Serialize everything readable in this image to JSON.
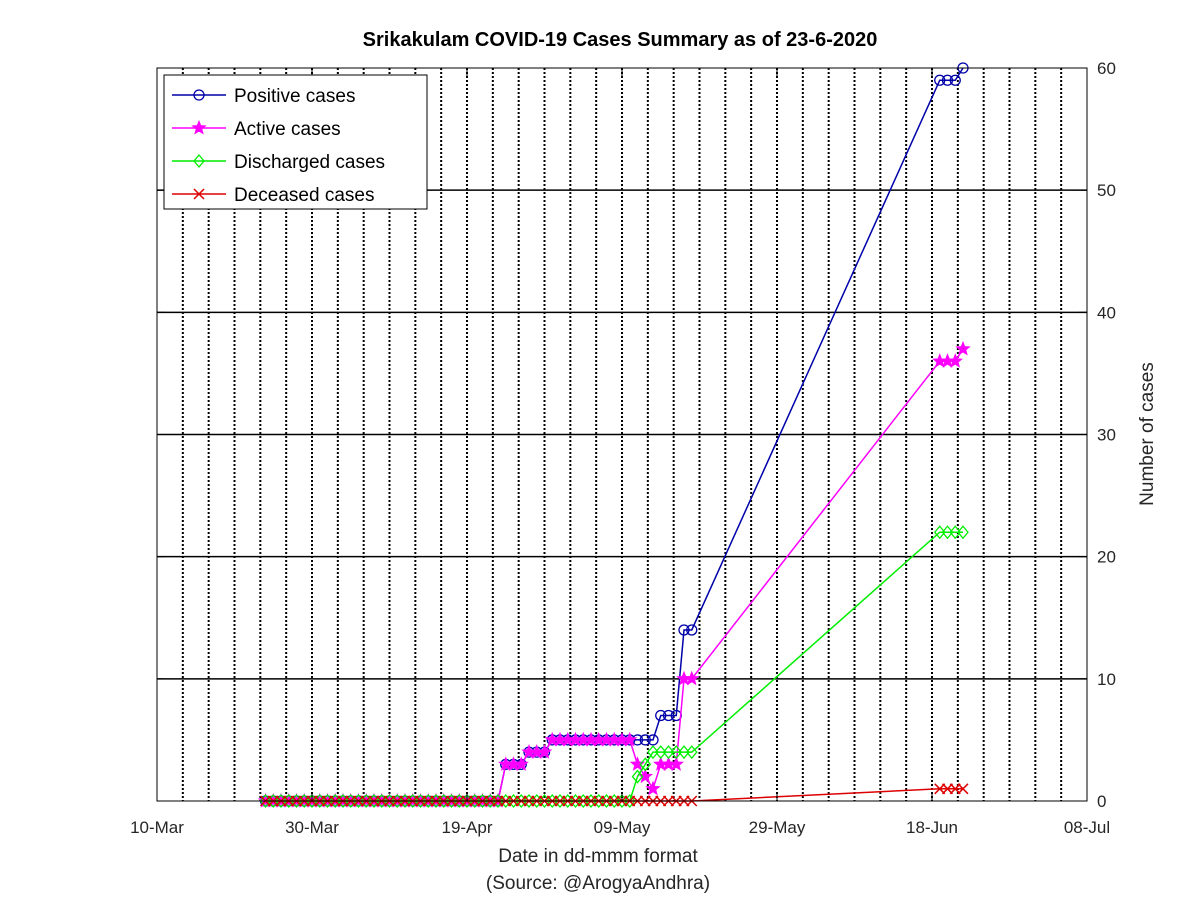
{
  "chart_data": {
    "type": "line",
    "title": "Srikakulam COVID-19 Cases Summary as of 23-6-2020",
    "xlabel": "Date in dd-mmm format",
    "xlabel_source": "(Source: @ArogyaAndhra)",
    "ylabel": "Number of cases",
    "x_range": [
      "2020-03-10",
      "2020-07-08"
    ],
    "ylim": [
      0,
      60
    ],
    "x_ticks": [
      {
        "date": "2020-03-10",
        "label": "10-Mar"
      },
      {
        "date": "2020-03-30",
        "label": "30-Mar"
      },
      {
        "date": "2020-04-19",
        "label": "19-Apr"
      },
      {
        "date": "2020-05-09",
        "label": "09-May"
      },
      {
        "date": "2020-05-29",
        "label": "29-May"
      },
      {
        "date": "2020-06-18",
        "label": "18-Jun"
      },
      {
        "date": "2020-07-08",
        "label": "08-Jul"
      }
    ],
    "y_ticks": [
      0,
      10,
      20,
      30,
      40,
      50,
      60
    ],
    "y_axis_side": "right",
    "grid": "vertical dotted daily-ish lines, horizontal solid lines",
    "legend_position": "top-left",
    "series": [
      {
        "name": "Positive cases",
        "color": "#0000aa",
        "marker": "circle",
        "points": [
          [
            "2020-03-24",
            0
          ],
          [
            "2020-03-25",
            0
          ],
          [
            "2020-03-26",
            0
          ],
          [
            "2020-03-27",
            0
          ],
          [
            "2020-03-28",
            0
          ],
          [
            "2020-03-29",
            0
          ],
          [
            "2020-03-30",
            0
          ],
          [
            "2020-03-31",
            0
          ],
          [
            "2020-04-01",
            0
          ],
          [
            "2020-04-02",
            0
          ],
          [
            "2020-04-03",
            0
          ],
          [
            "2020-04-04",
            0
          ],
          [
            "2020-04-05",
            0
          ],
          [
            "2020-04-06",
            0
          ],
          [
            "2020-04-07",
            0
          ],
          [
            "2020-04-08",
            0
          ],
          [
            "2020-04-09",
            0
          ],
          [
            "2020-04-10",
            0
          ],
          [
            "2020-04-11",
            0
          ],
          [
            "2020-04-12",
            0
          ],
          [
            "2020-04-13",
            0
          ],
          [
            "2020-04-14",
            0
          ],
          [
            "2020-04-15",
            0
          ],
          [
            "2020-04-16",
            0
          ],
          [
            "2020-04-17",
            0
          ],
          [
            "2020-04-18",
            0
          ],
          [
            "2020-04-19",
            0
          ],
          [
            "2020-04-20",
            0
          ],
          [
            "2020-04-21",
            0
          ],
          [
            "2020-04-22",
            0
          ],
          [
            "2020-04-23",
            0
          ],
          [
            "2020-04-24",
            3
          ],
          [
            "2020-04-25",
            3
          ],
          [
            "2020-04-26",
            3
          ],
          [
            "2020-04-27",
            4
          ],
          [
            "2020-04-28",
            4
          ],
          [
            "2020-04-29",
            4
          ],
          [
            "2020-04-30",
            5
          ],
          [
            "2020-05-01",
            5
          ],
          [
            "2020-05-02",
            5
          ],
          [
            "2020-05-03",
            5
          ],
          [
            "2020-05-04",
            5
          ],
          [
            "2020-05-05",
            5
          ],
          [
            "2020-05-06",
            5
          ],
          [
            "2020-05-07",
            5
          ],
          [
            "2020-05-08",
            5
          ],
          [
            "2020-05-09",
            5
          ],
          [
            "2020-05-10",
            5
          ],
          [
            "2020-05-11",
            5
          ],
          [
            "2020-05-12",
            5
          ],
          [
            "2020-05-13",
            5
          ],
          [
            "2020-05-14",
            7
          ],
          [
            "2020-05-15",
            7
          ],
          [
            "2020-05-16",
            7
          ],
          [
            "2020-05-17",
            14
          ],
          [
            "2020-05-18",
            14
          ],
          [
            "2020-06-19",
            59
          ],
          [
            "2020-06-20",
            59
          ],
          [
            "2020-06-21",
            59
          ],
          [
            "2020-06-22",
            60
          ]
        ]
      },
      {
        "name": "Active cases",
        "color": "#ff00ff",
        "marker": "star",
        "points": [
          [
            "2020-03-24",
            0
          ],
          [
            "2020-03-25",
            0
          ],
          [
            "2020-03-26",
            0
          ],
          [
            "2020-03-27",
            0
          ],
          [
            "2020-03-28",
            0
          ],
          [
            "2020-03-29",
            0
          ],
          [
            "2020-03-30",
            0
          ],
          [
            "2020-03-31",
            0
          ],
          [
            "2020-04-01",
            0
          ],
          [
            "2020-04-02",
            0
          ],
          [
            "2020-04-03",
            0
          ],
          [
            "2020-04-04",
            0
          ],
          [
            "2020-04-05",
            0
          ],
          [
            "2020-04-06",
            0
          ],
          [
            "2020-04-07",
            0
          ],
          [
            "2020-04-08",
            0
          ],
          [
            "2020-04-09",
            0
          ],
          [
            "2020-04-10",
            0
          ],
          [
            "2020-04-11",
            0
          ],
          [
            "2020-04-12",
            0
          ],
          [
            "2020-04-13",
            0
          ],
          [
            "2020-04-14",
            0
          ],
          [
            "2020-04-15",
            0
          ],
          [
            "2020-04-16",
            0
          ],
          [
            "2020-04-17",
            0
          ],
          [
            "2020-04-18",
            0
          ],
          [
            "2020-04-19",
            0
          ],
          [
            "2020-04-20",
            0
          ],
          [
            "2020-04-21",
            0
          ],
          [
            "2020-04-22",
            0
          ],
          [
            "2020-04-23",
            0
          ],
          [
            "2020-04-24",
            3
          ],
          [
            "2020-04-25",
            3
          ],
          [
            "2020-04-26",
            3
          ],
          [
            "2020-04-27",
            4
          ],
          [
            "2020-04-28",
            4
          ],
          [
            "2020-04-29",
            4
          ],
          [
            "2020-04-30",
            5
          ],
          [
            "2020-05-01",
            5
          ],
          [
            "2020-05-02",
            5
          ],
          [
            "2020-05-03",
            5
          ],
          [
            "2020-05-04",
            5
          ],
          [
            "2020-05-05",
            5
          ],
          [
            "2020-05-06",
            5
          ],
          [
            "2020-05-07",
            5
          ],
          [
            "2020-05-08",
            5
          ],
          [
            "2020-05-09",
            5
          ],
          [
            "2020-05-10",
            5
          ],
          [
            "2020-05-11",
            3
          ],
          [
            "2020-05-12",
            2
          ],
          [
            "2020-05-13",
            1
          ],
          [
            "2020-05-14",
            3
          ],
          [
            "2020-05-15",
            3
          ],
          [
            "2020-05-16",
            3
          ],
          [
            "2020-05-17",
            10
          ],
          [
            "2020-05-18",
            10
          ],
          [
            "2020-06-19",
            36
          ],
          [
            "2020-06-20",
            36
          ],
          [
            "2020-06-21",
            36
          ],
          [
            "2020-06-22",
            37
          ]
        ]
      },
      {
        "name": "Discharged cases",
        "color": "#00ee00",
        "marker": "diamond",
        "points": [
          [
            "2020-03-24",
            0
          ],
          [
            "2020-03-25",
            0
          ],
          [
            "2020-03-26",
            0
          ],
          [
            "2020-03-27",
            0
          ],
          [
            "2020-03-28",
            0
          ],
          [
            "2020-03-29",
            0
          ],
          [
            "2020-03-30",
            0
          ],
          [
            "2020-03-31",
            0
          ],
          [
            "2020-04-01",
            0
          ],
          [
            "2020-04-02",
            0
          ],
          [
            "2020-04-03",
            0
          ],
          [
            "2020-04-04",
            0
          ],
          [
            "2020-04-05",
            0
          ],
          [
            "2020-04-06",
            0
          ],
          [
            "2020-04-07",
            0
          ],
          [
            "2020-04-08",
            0
          ],
          [
            "2020-04-09",
            0
          ],
          [
            "2020-04-10",
            0
          ],
          [
            "2020-04-11",
            0
          ],
          [
            "2020-04-12",
            0
          ],
          [
            "2020-04-13",
            0
          ],
          [
            "2020-04-14",
            0
          ],
          [
            "2020-04-15",
            0
          ],
          [
            "2020-04-16",
            0
          ],
          [
            "2020-04-17",
            0
          ],
          [
            "2020-04-18",
            0
          ],
          [
            "2020-04-19",
            0
          ],
          [
            "2020-04-20",
            0
          ],
          [
            "2020-04-21",
            0
          ],
          [
            "2020-04-22",
            0
          ],
          [
            "2020-04-23",
            0
          ],
          [
            "2020-04-24",
            0
          ],
          [
            "2020-04-25",
            0
          ],
          [
            "2020-04-26",
            0
          ],
          [
            "2020-04-27",
            0
          ],
          [
            "2020-04-28",
            0
          ],
          [
            "2020-04-29",
            0
          ],
          [
            "2020-04-30",
            0
          ],
          [
            "2020-05-01",
            0
          ],
          [
            "2020-05-02",
            0
          ],
          [
            "2020-05-03",
            0
          ],
          [
            "2020-05-04",
            0
          ],
          [
            "2020-05-05",
            0
          ],
          [
            "2020-05-06",
            0
          ],
          [
            "2020-05-07",
            0
          ],
          [
            "2020-05-08",
            0
          ],
          [
            "2020-05-09",
            0
          ],
          [
            "2020-05-10",
            0
          ],
          [
            "2020-05-11",
            2
          ],
          [
            "2020-05-12",
            3
          ],
          [
            "2020-05-13",
            4
          ],
          [
            "2020-05-14",
            4
          ],
          [
            "2020-05-15",
            4
          ],
          [
            "2020-05-16",
            4
          ],
          [
            "2020-05-17",
            4
          ],
          [
            "2020-05-18",
            4
          ],
          [
            "2020-06-19",
            22
          ],
          [
            "2020-06-20",
            22
          ],
          [
            "2020-06-21",
            22
          ],
          [
            "2020-06-22",
            22
          ]
        ]
      },
      {
        "name": "Deceased cases",
        "color": "#dd0000",
        "marker": "x",
        "points": [
          [
            "2020-03-24",
            0
          ],
          [
            "2020-03-25",
            0
          ],
          [
            "2020-03-26",
            0
          ],
          [
            "2020-03-27",
            0
          ],
          [
            "2020-03-28",
            0
          ],
          [
            "2020-03-29",
            0
          ],
          [
            "2020-03-30",
            0
          ],
          [
            "2020-03-31",
            0
          ],
          [
            "2020-04-01",
            0
          ],
          [
            "2020-04-02",
            0
          ],
          [
            "2020-04-03",
            0
          ],
          [
            "2020-04-04",
            0
          ],
          [
            "2020-04-05",
            0
          ],
          [
            "2020-04-06",
            0
          ],
          [
            "2020-04-07",
            0
          ],
          [
            "2020-04-08",
            0
          ],
          [
            "2020-04-09",
            0
          ],
          [
            "2020-04-10",
            0
          ],
          [
            "2020-04-11",
            0
          ],
          [
            "2020-04-12",
            0
          ],
          [
            "2020-04-13",
            0
          ],
          [
            "2020-04-14",
            0
          ],
          [
            "2020-04-15",
            0
          ],
          [
            "2020-04-16",
            0
          ],
          [
            "2020-04-17",
            0
          ],
          [
            "2020-04-18",
            0
          ],
          [
            "2020-04-19",
            0
          ],
          [
            "2020-04-20",
            0
          ],
          [
            "2020-04-21",
            0
          ],
          [
            "2020-04-22",
            0
          ],
          [
            "2020-04-23",
            0
          ],
          [
            "2020-04-24",
            0
          ],
          [
            "2020-04-25",
            0
          ],
          [
            "2020-04-26",
            0
          ],
          [
            "2020-04-27",
            0
          ],
          [
            "2020-04-28",
            0
          ],
          [
            "2020-04-29",
            0
          ],
          [
            "2020-04-30",
            0
          ],
          [
            "2020-05-01",
            0
          ],
          [
            "2020-05-02",
            0
          ],
          [
            "2020-05-03",
            0
          ],
          [
            "2020-05-04",
            0
          ],
          [
            "2020-05-05",
            0
          ],
          [
            "2020-05-06",
            0
          ],
          [
            "2020-05-07",
            0
          ],
          [
            "2020-05-08",
            0
          ],
          [
            "2020-05-09",
            0
          ],
          [
            "2020-05-10",
            0
          ],
          [
            "2020-05-11",
            0
          ],
          [
            "2020-05-12",
            0
          ],
          [
            "2020-05-13",
            0
          ],
          [
            "2020-05-14",
            0
          ],
          [
            "2020-05-15",
            0
          ],
          [
            "2020-05-16",
            0
          ],
          [
            "2020-05-17",
            0
          ],
          [
            "2020-05-18",
            0
          ],
          [
            "2020-06-19",
            1
          ],
          [
            "2020-06-20",
            1
          ],
          [
            "2020-06-21",
            1
          ],
          [
            "2020-06-22",
            1
          ]
        ]
      }
    ]
  }
}
